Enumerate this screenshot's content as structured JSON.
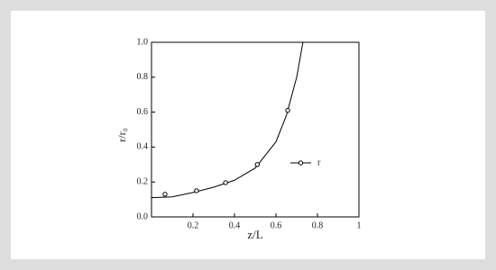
{
  "chart_data": {
    "type": "line",
    "xlabel": "z/L",
    "ylabel": "r/r₀",
    "xlim": [
      0,
      1
    ],
    "ylim": [
      0,
      1
    ],
    "xticks": [
      0.2,
      0.4,
      0.6,
      0.8,
      1
    ],
    "yticks": [
      {
        "value": 0,
        "label": "0.0"
      },
      0.2,
      0.4,
      0.6,
      0.8,
      {
        "value": 1,
        "label": "1.0"
      }
    ],
    "series": [
      {
        "name": "r",
        "color": "#000000",
        "x": [
          0,
          0.1,
          0.2,
          0.3,
          0.4,
          0.5,
          0.6,
          0.65,
          0.7,
          0.73
        ],
        "values": [
          0.11,
          0.115,
          0.14,
          0.17,
          0.21,
          0.28,
          0.43,
          0.58,
          0.8,
          1.0
        ],
        "marker_x": [
          0.065,
          0.217,
          0.357,
          0.51,
          0.657
        ],
        "marker_values": [
          0.13,
          0.15,
          0.196,
          0.3,
          0.61
        ]
      }
    ]
  }
}
